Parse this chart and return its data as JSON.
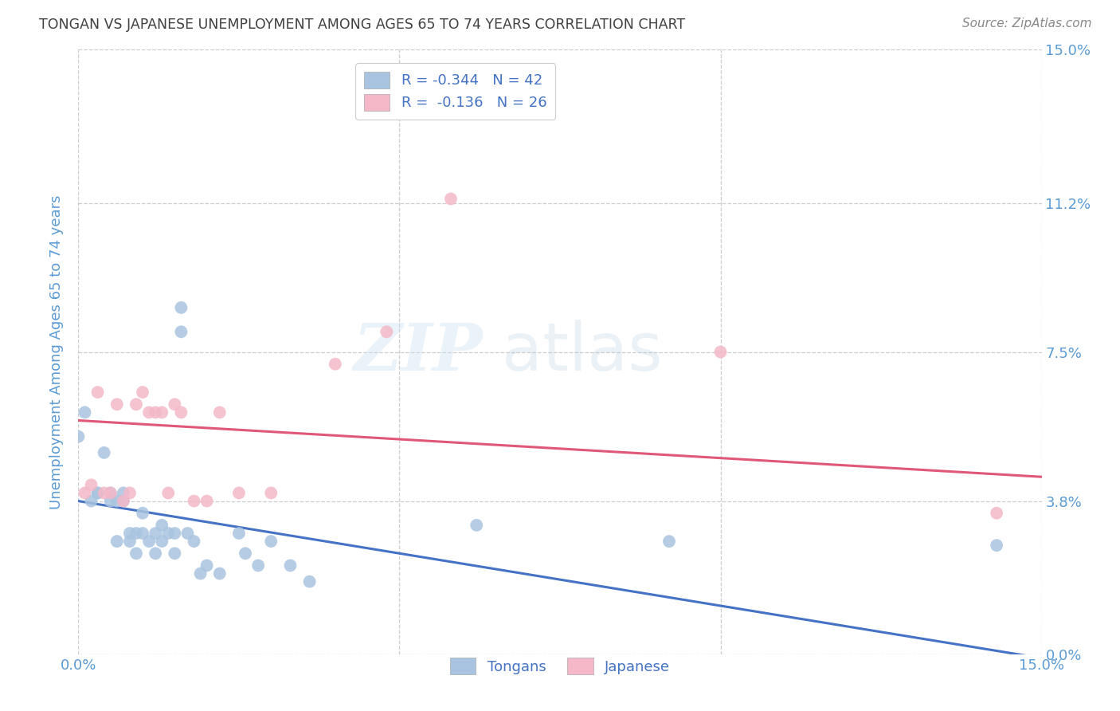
{
  "title": "TONGAN VS JAPANESE UNEMPLOYMENT AMONG AGES 65 TO 74 YEARS CORRELATION CHART",
  "source": "Source: ZipAtlas.com",
  "ylabel": "Unemployment Among Ages 65 to 74 years",
  "watermark": "ZIPatlas",
  "xmin": 0.0,
  "xmax": 0.15,
  "ymin": 0.0,
  "ymax": 0.15,
  "ytick_vals": [
    0.0,
    0.038,
    0.075,
    0.112,
    0.15
  ],
  "ytick_labels": [
    "0.0%",
    "3.8%",
    "7.5%",
    "11.2%",
    "15.0%"
  ],
  "xtick_vals": [
    0.0,
    0.05,
    0.1,
    0.15
  ],
  "xtick_labels": [
    "0.0%",
    "",
    "",
    "15.0%"
  ],
  "blue_R": "-0.344",
  "blue_N": "42",
  "pink_R": "-0.136",
  "pink_N": "26",
  "blue_scatter_color": "#a8c4e0",
  "pink_scatter_color": "#f4b8c8",
  "blue_line_color": "#4472c4",
  "pink_line_color": "#e05878",
  "title_color": "#404040",
  "ylabel_color": "#5b9bd5",
  "tick_label_color": "#5b9bd5",
  "legend_text_color": "#4472c4",
  "grid_color": "#c8c8c8",
  "background_color": "#ffffff",
  "tongans_x": [
    0.0,
    0.001,
    0.002,
    0.003,
    0.003,
    0.004,
    0.005,
    0.005,
    0.006,
    0.006,
    0.007,
    0.007,
    0.008,
    0.008,
    0.009,
    0.009,
    0.01,
    0.01,
    0.011,
    0.012,
    0.012,
    0.013,
    0.013,
    0.014,
    0.015,
    0.015,
    0.016,
    0.016,
    0.017,
    0.018,
    0.019,
    0.02,
    0.022,
    0.025,
    0.026,
    0.028,
    0.03,
    0.033,
    0.036,
    0.062,
    0.092,
    0.143
  ],
  "tongans_y": [
    0.054,
    0.06,
    0.038,
    0.04,
    0.04,
    0.05,
    0.04,
    0.038,
    0.038,
    0.028,
    0.04,
    0.038,
    0.03,
    0.028,
    0.03,
    0.025,
    0.035,
    0.03,
    0.028,
    0.03,
    0.025,
    0.032,
    0.028,
    0.03,
    0.03,
    0.025,
    0.08,
    0.086,
    0.03,
    0.028,
    0.02,
    0.022,
    0.02,
    0.03,
    0.025,
    0.022,
    0.028,
    0.022,
    0.018,
    0.032,
    0.028,
    0.027
  ],
  "japanese_x": [
    0.001,
    0.002,
    0.003,
    0.004,
    0.005,
    0.006,
    0.007,
    0.008,
    0.009,
    0.01,
    0.011,
    0.012,
    0.013,
    0.014,
    0.015,
    0.016,
    0.018,
    0.02,
    0.022,
    0.025,
    0.03,
    0.04,
    0.048,
    0.058,
    0.1,
    0.143
  ],
  "japanese_y": [
    0.04,
    0.042,
    0.065,
    0.04,
    0.04,
    0.062,
    0.038,
    0.04,
    0.062,
    0.065,
    0.06,
    0.06,
    0.06,
    0.04,
    0.062,
    0.06,
    0.038,
    0.038,
    0.06,
    0.04,
    0.04,
    0.072,
    0.08,
    0.113,
    0.075,
    0.035
  ]
}
